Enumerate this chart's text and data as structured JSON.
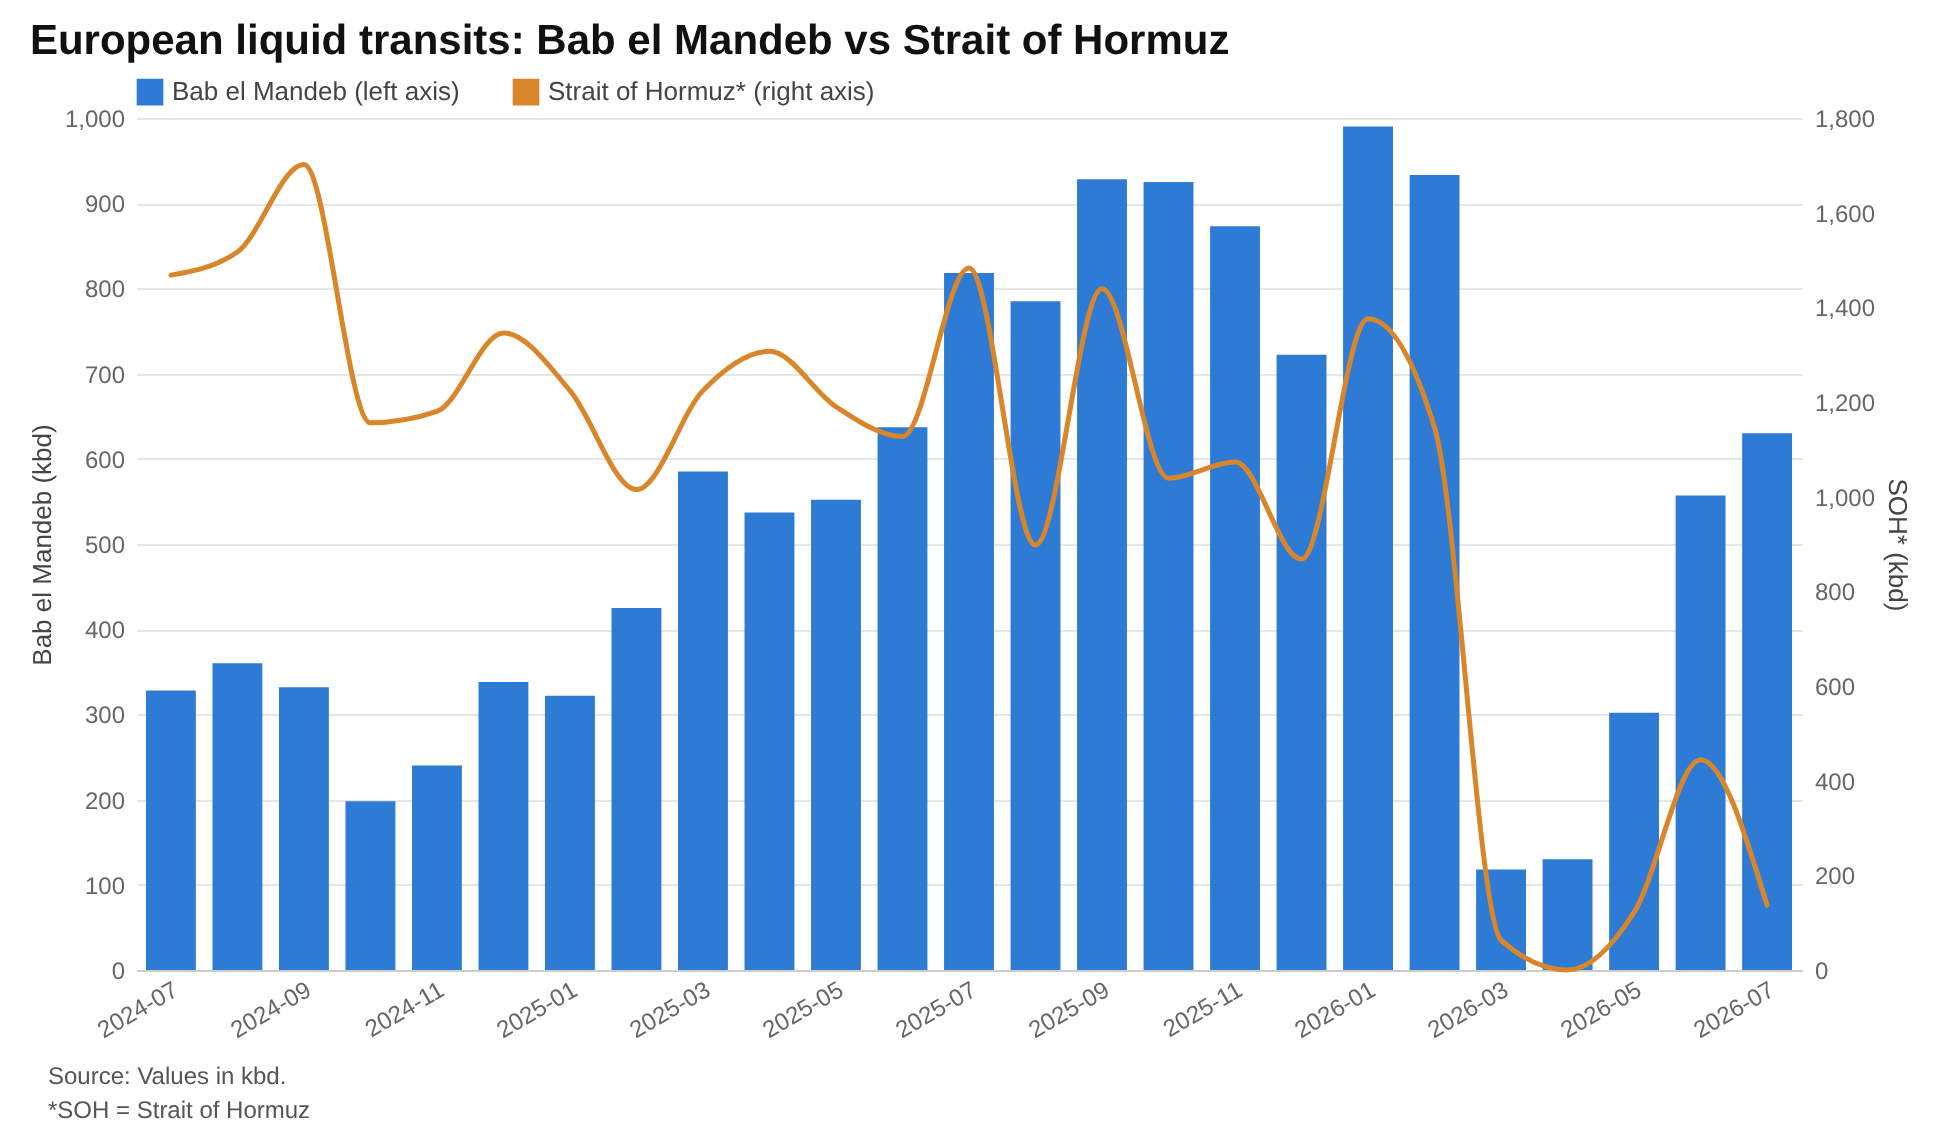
{
  "chart_data": {
    "type": "bar",
    "title": "European liquid transits: Bab el Mandeb vs Strait of Hormuz",
    "categories": [
      "2024-07",
      null,
      "2024-09",
      null,
      "2024-11",
      null,
      "2025-01",
      null,
      "2025-03",
      null,
      "2025-05",
      null,
      "2025-07",
      null,
      "2025-09",
      null,
      "2025-11",
      null,
      "2026-01",
      null,
      "2026-03",
      null,
      "2026-05",
      null,
      "2026-07"
    ],
    "series": [
      {
        "name": "Bab el Mandeb (left axis)",
        "color": "#2e7bd6",
        "values": [
          328,
          360,
          332,
          198,
          240,
          338,
          322,
          425,
          585,
          537,
          552,
          637,
          818,
          785,
          928,
          925,
          873,
          722,
          990,
          933,
          118,
          130,
          302,
          557,
          630
        ]
      },
      {
        "name": "Strait of Hormuz* (right axis)",
        "type": "line",
        "axis": "y2",
        "color": "#d9862a",
        "values": [
          1468,
          1517,
          1702,
          1156,
          1180,
          1346,
          1224,
          1015,
          1224,
          1307,
          1190,
          1127,
          1483,
          898,
          1439,
          1039,
          1073,
          868,
          1376,
          1146,
          63,
          0,
          122,
          444,
          137
        ]
      }
    ],
    "ylabel": "Bab el Mandeb (kbd)",
    "y2label": "SOH* (kbd)",
    "ylim": [
      0,
      1000
    ],
    "yticks": [
      0,
      100,
      200,
      300,
      400,
      500,
      600,
      700,
      800,
      900,
      {
        "value": 1000,
        "label": "1,000"
      }
    ],
    "y2lim": [
      0,
      1800
    ],
    "y2ticks": [
      0,
      200,
      400,
      600,
      800,
      {
        "value": 1000,
        "label": "1,000"
      },
      {
        "value": 1200,
        "label": "1,200"
      },
      {
        "value": 1400,
        "label": "1,400"
      },
      {
        "value": 1600,
        "label": "1,600"
      },
      {
        "value": 1800,
        "label": "1,800"
      }
    ],
    "grid": "y",
    "legend": "top left",
    "annotations": [
      "Source: Values in kbd.",
      "*SOH = Strait of Hormuz"
    ]
  }
}
